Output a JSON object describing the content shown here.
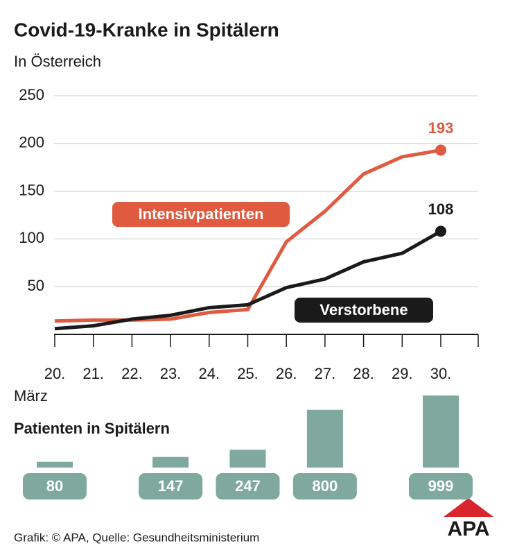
{
  "chart_data": [
    {
      "type": "line",
      "title": "Covid-19-Kranke in Spitälern",
      "subtitle": "In Österreich",
      "x_label": "März",
      "categories": [
        "20.",
        "21.",
        "22.",
        "23.",
        "24.",
        "25.",
        "26.",
        "27.",
        "28.",
        "29.",
        "30."
      ],
      "series": [
        {
          "name": "Intensivpatienten",
          "color": "#e05a40",
          "values": [
            14,
            15,
            15,
            16,
            23,
            26,
            97,
            129,
            168,
            186,
            193
          ]
        },
        {
          "name": "Verstorbene",
          "color": "#1a1a1a",
          "values": [
            6,
            9,
            16,
            20,
            28,
            31,
            49,
            58,
            76,
            85,
            108
          ]
        }
      ],
      "ylim": [
        0,
        250
      ],
      "yticks": [
        50,
        100,
        150,
        200,
        250
      ],
      "grid": true
    },
    {
      "type": "bar",
      "title": "Patienten in Spitälern",
      "color": "#7fa89f",
      "categories": [
        "20.",
        "23.",
        "25.",
        "27.",
        "30."
      ],
      "values": [
        80,
        147,
        247,
        800,
        999
      ]
    }
  ],
  "footer": {
    "source": "Grafik: © APA, Quelle: Gesundheitsministerium",
    "logo": "APA"
  }
}
